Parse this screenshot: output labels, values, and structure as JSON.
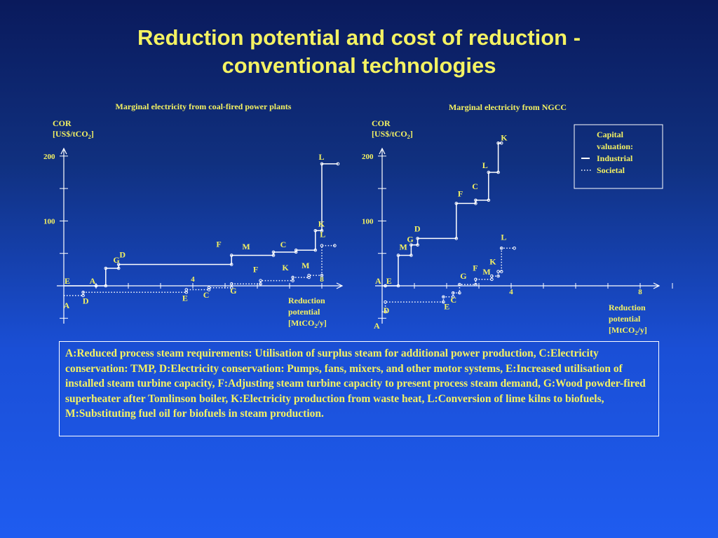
{
  "slide": {
    "title_line1": "Reduction potential and cost of reduction -",
    "title_line2": "conventional technologies",
    "caption": "A:Reduced process steam requirements: Utilisation of surplus steam for additional power production, C:Electricity conservation: TMP, D:Electricity conservation: Pumps, fans, mixers, and other motor systems, E:Increased utilisation of installed steam turbine capacity, F:Adjusting steam turbine capacity to present process steam demand, G:Wood powder-fired superheater after Tomlinson boiler, K:Electricity production from waste heat, L:Conversion of lime kilns to biofuels, M:Substituting fuel oil for biofuels in steam production."
  },
  "legend": {
    "title_line1": "Capital",
    "title_line2": "valuation:",
    "items": [
      "Industrial",
      "Societal"
    ]
  },
  "colors": {
    "text": "#f4f262",
    "axis": "#ffffff",
    "background_top": "#0a1a5c",
    "background_bottom": "#1f5cf0"
  },
  "chart_data": [
    {
      "type": "line",
      "title": "Marginal electricity from coal-fired power plants",
      "ylabel_line1": "COR",
      "ylabel_line2": "[US$/tCO2]",
      "xlabel_line1": "Reduction",
      "xlabel_line2": "potential",
      "xlabel_line3": "[MtCO2/y]",
      "xlim": [
        0,
        8.5
      ],
      "ylim": [
        -50,
        200
      ],
      "y_ticks": [
        100,
        200
      ],
      "x_ticks": [
        4,
        8
      ],
      "series": [
        {
          "name": "Industrial",
          "style": "solid",
          "steps": [
            {
              "label": "E",
              "x0": 0,
              "x1": 1.0,
              "y": 0
            },
            {
              "label": "A",
              "x0": 1.0,
              "x1": 1.3,
              "y": 0
            },
            {
              "label": "G",
              "x0": 1.3,
              "x1": 1.7,
              "y": 27
            },
            {
              "label": "D",
              "x0": 1.7,
              "x1": 5.2,
              "y": 33
            },
            {
              "label": "F",
              "x0": 5.2,
              "x1": 6.5,
              "y": 47
            },
            {
              "label": "M",
              "x0": 6.5,
              "x1": 7.2,
              "y": 52
            },
            {
              "label": "C",
              "x0": 7.2,
              "x1": 7.8,
              "y": 55
            },
            {
              "label": "K",
              "x0": 7.8,
              "x1": 8.0,
              "y": 85
            },
            {
              "label": "L",
              "x0": 8.0,
              "x1": 8.5,
              "y": 188
            }
          ]
        },
        {
          "name": "Societal",
          "style": "dotted",
          "steps": [
            {
              "label": "A",
              "x0": 0,
              "x1": 0.6,
              "y": -15
            },
            {
              "label": "D",
              "x0": 0.6,
              "x1": 3.8,
              "y": -10
            },
            {
              "label": "E",
              "x0": 3.8,
              "x1": 4.5,
              "y": -6
            },
            {
              "label": "C",
              "x0": 4.5,
              "x1": 5.2,
              "y": -3
            },
            {
              "label": "G",
              "x0": 5.2,
              "x1": 6.1,
              "y": 3
            },
            {
              "label": "F",
              "x0": 6.1,
              "x1": 7.1,
              "y": 8
            },
            {
              "label": "K",
              "x0": 7.1,
              "x1": 7.6,
              "y": 13
            },
            {
              "label": "M",
              "x0": 7.6,
              "x1": 8.0,
              "y": 16
            },
            {
              "label": "L",
              "x0": 8.0,
              "x1": 8.4,
              "y": 62
            }
          ]
        }
      ]
    },
    {
      "type": "line",
      "title": "Marginal electricity from NGCC",
      "ylabel_line1": "COR",
      "ylabel_line2": "[US$/tCO2]",
      "xlabel_line1": "Reduction",
      "xlabel_line2": "potential",
      "xlabel_line3": "[MtCO2/y]",
      "xlim": [
        0,
        9
      ],
      "ylim": [
        -50,
        200
      ],
      "y_ticks": [
        100,
        200
      ],
      "x_ticks": [
        4,
        8
      ],
      "series": [
        {
          "name": "Industrial",
          "style": "solid",
          "steps": [
            {
              "label": "A",
              "x0": 0,
              "x1": 0.1,
              "y": 0
            },
            {
              "label": "E",
              "x0": 0.1,
              "x1": 0.5,
              "y": 0
            },
            {
              "label": "M",
              "x0": 0.5,
              "x1": 0.9,
              "y": 47
            },
            {
              "label": "G",
              "x0": 0.9,
              "x1": 1.1,
              "y": 63
            },
            {
              "label": "D",
              "x0": 1.1,
              "x1": 2.3,
              "y": 73
            },
            {
              "label": "F",
              "x0": 2.3,
              "x1": 2.9,
              "y": 127
            },
            {
              "label": "C",
              "x0": 2.9,
              "x1": 3.3,
              "y": 132
            },
            {
              "label": "L",
              "x0": 3.3,
              "x1": 3.6,
              "y": 175
            },
            {
              "label": "K",
              "x0": 3.6,
              "x1": 3.7,
              "y": 220
            }
          ]
        },
        {
          "name": "Societal",
          "style": "dotted",
          "steps": [
            {
              "label": "A",
              "x0": 0,
              "x1": 0.1,
              "y": -40
            },
            {
              "label": "D",
              "x0": 0.1,
              "x1": 1.9,
              "y": -25
            },
            {
              "label": "E",
              "x0": 1.9,
              "x1": 2.2,
              "y": -17
            },
            {
              "label": "C",
              "x0": 2.2,
              "x1": 2.4,
              "y": -11
            },
            {
              "label": "G",
              "x0": 2.4,
              "x1": 2.9,
              "y": 2
            },
            {
              "label": "F",
              "x0": 2.9,
              "x1": 3.4,
              "y": 10
            },
            {
              "label": "M",
              "x0": 3.4,
              "x1": 3.6,
              "y": 15
            },
            {
              "label": "K",
              "x0": 3.6,
              "x1": 3.7,
              "y": 22
            },
            {
              "label": "L",
              "x0": 3.7,
              "x1": 4.1,
              "y": 58
            }
          ]
        }
      ]
    }
  ]
}
